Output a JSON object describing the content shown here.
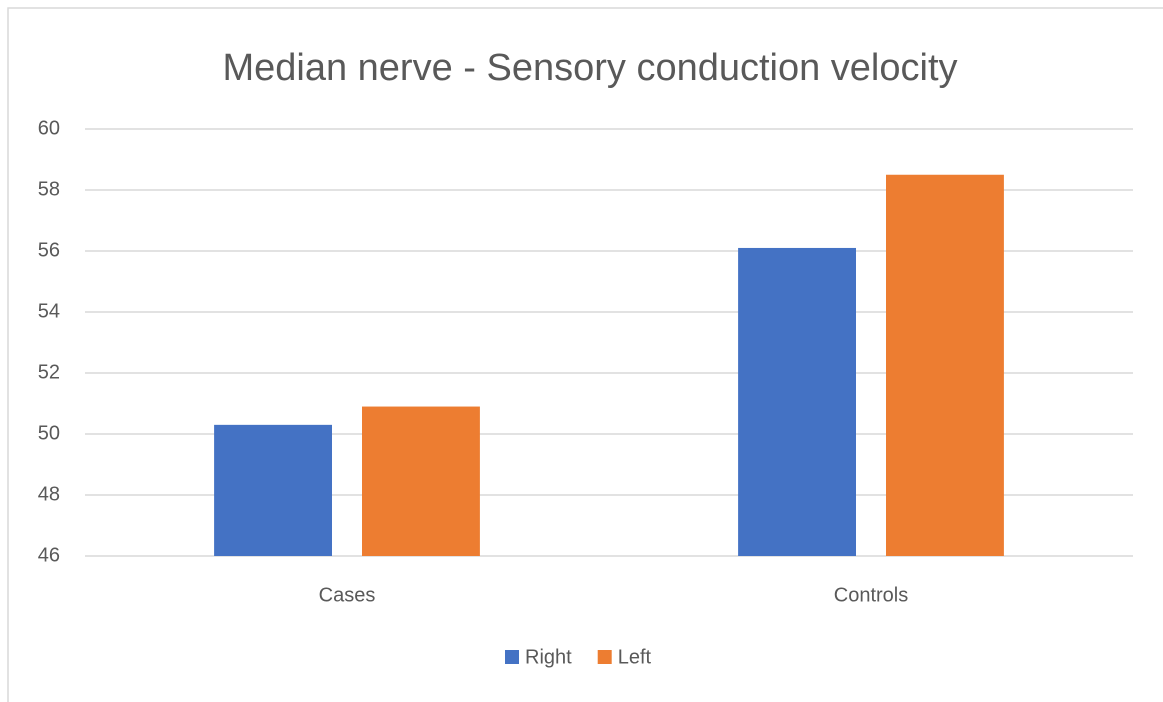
{
  "chart_data": {
    "type": "bar",
    "title": "Median nerve - Sensory conduction velocity",
    "categories": [
      "Cases",
      "Controls"
    ],
    "series": [
      {
        "name": "Right",
        "color": "#4472c4",
        "values": [
          50.3,
          56.1
        ]
      },
      {
        "name": "Left",
        "color": "#ed7d31",
        "values": [
          50.9,
          58.5
        ]
      }
    ],
    "ylim": [
      46,
      60
    ],
    "yticks": [
      46,
      48,
      50,
      52,
      54,
      56,
      58,
      60
    ],
    "grid": true,
    "legend": "bottom"
  }
}
